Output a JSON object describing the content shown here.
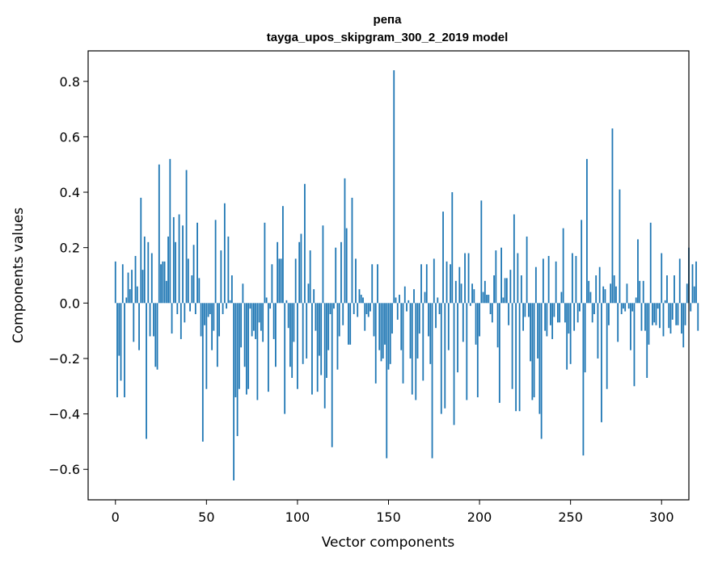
{
  "chart_data": {
    "type": "bar",
    "title": "репа",
    "subtitle": "tayga_upos_skipgram_300_2_2019 model",
    "xlabel": "Vector components",
    "ylabel": "Components values",
    "xlim": [
      -15,
      315
    ],
    "ylim": [
      -0.71,
      0.91
    ],
    "x_ticks": [
      0,
      50,
      100,
      150,
      200,
      250,
      300
    ],
    "y_ticks": [
      -0.6,
      -0.4,
      -0.2,
      0.0,
      0.2,
      0.4,
      0.6,
      0.8
    ],
    "x_tick_labels": [
      "0",
      "50",
      "100",
      "150",
      "200",
      "250",
      "300"
    ],
    "y_tick_labels": [
      "−0.6",
      "−0.4",
      "−0.2",
      "0.0",
      "0.2",
      "0.4",
      "0.6",
      "0.8"
    ],
    "grid": false,
    "bar_color": "#1f77b4",
    "values": [
      0.15,
      -0.34,
      -0.19,
      -0.28,
      0.14,
      -0.34,
      0.02,
      0.11,
      0.05,
      0.12,
      -0.14,
      0.17,
      0.06,
      -0.17,
      0.38,
      0.12,
      0.24,
      -0.49,
      0.22,
      -0.12,
      0.18,
      -0.12,
      -0.23,
      -0.24,
      0.5,
      0.14,
      0.15,
      0.15,
      0.08,
      0.24,
      0.52,
      -0.11,
      0.31,
      0.22,
      -0.04,
      0.32,
      -0.13,
      0.28,
      -0.07,
      0.48,
      0.16,
      -0.03,
      0.1,
      0.21,
      -0.04,
      0.29,
      0.09,
      -0.12,
      -0.5,
      -0.08,
      -0.31,
      -0.05,
      -0.04,
      -0.17,
      -0.1,
      0.3,
      -0.23,
      -0.12,
      0.19,
      -0.04,
      0.36,
      -0.02,
      0.24,
      0.01,
      0.1,
      -0.64,
      -0.34,
      -0.48,
      -0.31,
      -0.16,
      0.07,
      -0.23,
      -0.33,
      -0.31,
      -0.02,
      -0.12,
      -0.1,
      -0.13,
      -0.35,
      -0.07,
      -0.1,
      -0.14,
      0.29,
      0.02,
      -0.32,
      -0.02,
      0.14,
      -0.13,
      -0.23,
      0.22,
      0.16,
      0.16,
      0.35,
      -0.4,
      0.01,
      -0.09,
      -0.23,
      -0.27,
      -0.14,
      0.16,
      -0.31,
      0.22,
      0.25,
      -0.22,
      0.43,
      -0.2,
      0.07,
      0.19,
      -0.33,
      0.05,
      -0.1,
      -0.32,
      -0.19,
      -0.26,
      0.28,
      -0.38,
      -0.27,
      -0.17,
      -0.04,
      -0.52,
      -0.02,
      0.2,
      -0.24,
      -0.12,
      0.22,
      -0.08,
      0.45,
      0.27,
      -0.15,
      -0.15,
      0.38,
      -0.04,
      0.16,
      -0.05,
      0.05,
      0.03,
      0.02,
      -0.1,
      -0.04,
      -0.05,
      -0.03,
      0.14,
      -0.12,
      -0.29,
      0.14,
      -0.17,
      -0.21,
      -0.2,
      -0.15,
      -0.56,
      -0.24,
      -0.22,
      -0.11,
      0.84,
      0.02,
      -0.06,
      0.03,
      -0.17,
      -0.29,
      0.06,
      -0.03,
      0.01,
      -0.2,
      -0.33,
      0.05,
      -0.35,
      -0.2,
      -0.11,
      0.14,
      -0.28,
      0.04,
      0.14,
      -0.12,
      -0.22,
      -0.56,
      0.16,
      -0.09,
      0.02,
      -0.04,
      -0.4,
      0.33,
      -0.38,
      0.15,
      -0.17,
      0.14,
      0.4,
      -0.44,
      0.08,
      -0.25,
      0.13,
      0.07,
      -0.14,
      0.18,
      -0.35,
      0.18,
      -0.01,
      0.07,
      0.05,
      -0.15,
      -0.34,
      -0.12,
      0.37,
      0.04,
      0.08,
      0.03,
      0.03,
      -0.04,
      -0.07,
      0.1,
      0.19,
      -0.16,
      -0.36,
      0.2,
      0.02,
      0.09,
      0.09,
      -0.08,
      0.12,
      -0.31,
      0.32,
      -0.39,
      0.18,
      -0.39,
      0.1,
      -0.1,
      -0.05,
      0.24,
      -0.05,
      -0.21,
      -0.35,
      -0.34,
      0.13,
      -0.2,
      -0.4,
      -0.49,
      0.16,
      -0.1,
      -0.12,
      0.17,
      -0.08,
      -0.13,
      -0.05,
      0.15,
      -0.07,
      -0.07,
      0.04,
      0.27,
      -0.07,
      -0.24,
      -0.11,
      -0.22,
      0.18,
      -0.1,
      0.17,
      -0.07,
      -0.03,
      0.3,
      -0.55,
      -0.25,
      0.52,
      0.08,
      0.04,
      -0.07,
      -0.04,
      0.1,
      -0.2,
      0.13,
      -0.43,
      0.06,
      0.05,
      -0.31,
      -0.08,
      0.07,
      0.63,
      0.1,
      0.06,
      -0.14,
      0.41,
      -0.04,
      -0.02,
      -0.03,
      0.07,
      -0.02,
      -0.17,
      -0.03,
      -0.3,
      0.02,
      0.23,
      0.08,
      -0.1,
      0.08,
      -0.1,
      -0.27,
      -0.15,
      0.29,
      -0.08,
      -0.07,
      -0.08,
      -0.02,
      -0.09,
      0.18,
      -0.12,
      0.01,
      0.1,
      -0.09,
      -0.11,
      -0.06,
      0.1,
      -0.08,
      -0.08,
      0.16,
      -0.11,
      -0.16,
      -0.08,
      0.07,
      0.2,
      -0.03,
      0.14,
      0.06,
      0.15,
      -0.1
    ]
  }
}
